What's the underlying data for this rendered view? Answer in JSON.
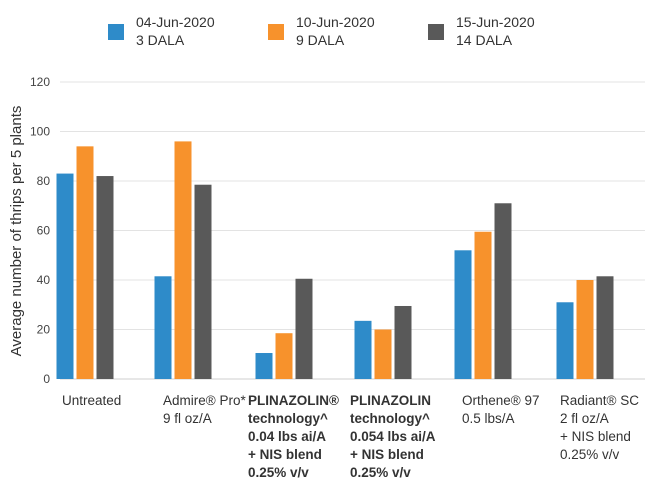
{
  "chart_data": {
    "type": "bar",
    "ylabel": "Average number of thrips per 5 plants",
    "ylim": [
      0,
      120
    ],
    "yticks": [
      0,
      20,
      40,
      60,
      80,
      100,
      120
    ],
    "grid": true,
    "legend_position": "top",
    "categories": [
      {
        "lines": [
          "Untreated"
        ],
        "bold": false
      },
      {
        "lines": [
          "Admire® Pro*",
          "9 fl oz/A"
        ],
        "bold": false
      },
      {
        "lines": [
          "PLINAZOLIN®",
          "technology^",
          "0.04 lbs ai/A",
          "+ NIS blend",
          "0.25% v/v"
        ],
        "bold": true
      },
      {
        "lines": [
          "PLINAZOLIN",
          "technology^",
          "0.054 lbs ai/A",
          "+ NIS blend",
          "0.25% v/v"
        ],
        "bold": true
      },
      {
        "lines": [
          "Orthene® 97",
          "0.5 lbs/A"
        ],
        "bold": false
      },
      {
        "lines": [
          "Radiant® SC",
          "2 fl oz/A",
          "+ NIS blend",
          "0.25% v/v"
        ],
        "bold": false
      }
    ],
    "series": [
      {
        "name": "04-Jun-2020",
        "sub": "3 DALA",
        "color": "#2e8bc9",
        "values": [
          83,
          41.5,
          10.5,
          23.5,
          52,
          31
        ]
      },
      {
        "name": "10-Jun-2020",
        "sub": "9 DALA",
        "color": "#f7922c",
        "values": [
          94,
          96,
          18.5,
          20,
          59.5,
          40
        ]
      },
      {
        "name": "15-Jun-2020",
        "sub": "14 DALA",
        "color": "#595959",
        "values": [
          82,
          78.5,
          40.5,
          29.5,
          71,
          41.5
        ]
      }
    ]
  }
}
